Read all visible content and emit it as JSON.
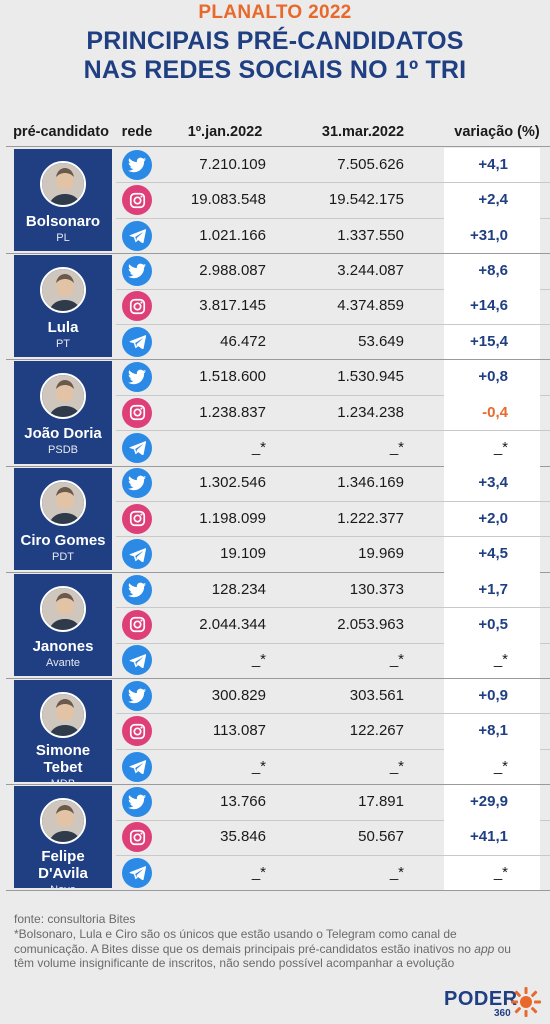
{
  "header": {
    "kicker": "PLANALTO 2022",
    "title_line1": "PRINCIPAIS PRÉ-CANDIDATOS",
    "title_line2": "NAS REDES SOCIAIS NO 1º TRI"
  },
  "columns": {
    "candidate": "pré-candidato",
    "network": "rede",
    "jan": "1º.jan.2022",
    "mar": "31.mar.2022",
    "change": "variação (%)"
  },
  "chart_data": {
    "type": "table",
    "networks": [
      "twitter",
      "instagram",
      "telegram"
    ],
    "candidates": [
      {
        "name": "Bolsonaro",
        "party": "PL",
        "rows": [
          {
            "network": "twitter",
            "jan": "7.210.109",
            "mar": "7.505.626",
            "change": "+4,1"
          },
          {
            "network": "instagram",
            "jan": "19.083.548",
            "mar": "19.542.175",
            "change": "+2,4"
          },
          {
            "network": "telegram",
            "jan": "1.021.166",
            "mar": "1.337.550",
            "change": "+31,0"
          }
        ]
      },
      {
        "name": "Lula",
        "party": "PT",
        "rows": [
          {
            "network": "twitter",
            "jan": "2.988.087",
            "mar": "3.244.087",
            "change": "+8,6"
          },
          {
            "network": "instagram",
            "jan": "3.817.145",
            "mar": "4.374.859",
            "change": "+14,6"
          },
          {
            "network": "telegram",
            "jan": "46.472",
            "mar": "53.649",
            "change": "+15,4"
          }
        ]
      },
      {
        "name": "João Doria",
        "party": "PSDB",
        "rows": [
          {
            "network": "twitter",
            "jan": "1.518.600",
            "mar": "1.530.945",
            "change": "+0,8"
          },
          {
            "network": "instagram",
            "jan": "1.238.837",
            "mar": "1.234.238",
            "change": "-0,4"
          },
          {
            "network": "telegram",
            "jan": "_*",
            "mar": "_*",
            "change": "_*"
          }
        ]
      },
      {
        "name": "Ciro Gomes",
        "party": "PDT",
        "rows": [
          {
            "network": "twitter",
            "jan": "1.302.546",
            "mar": "1.346.169",
            "change": "+3,4"
          },
          {
            "network": "instagram",
            "jan": "1.198.099",
            "mar": "1.222.377",
            "change": "+2,0"
          },
          {
            "network": "telegram",
            "jan": "19.109",
            "mar": "19.969",
            "change": "+4,5"
          }
        ]
      },
      {
        "name": "Janones",
        "party": "Avante",
        "rows": [
          {
            "network": "twitter",
            "jan": "128.234",
            "mar": "130.373",
            "change": "+1,7"
          },
          {
            "network": "instagram",
            "jan": "2.044.344",
            "mar": "2.053.963",
            "change": "+0,5"
          },
          {
            "network": "telegram",
            "jan": "_*",
            "mar": "_*",
            "change": "_*"
          }
        ]
      },
      {
        "name": "Simone Tebet",
        "party": "MDB",
        "rows": [
          {
            "network": "twitter",
            "jan": "300.829",
            "mar": "303.561",
            "change": "+0,9"
          },
          {
            "network": "instagram",
            "jan": "113.087",
            "mar": "122.267",
            "change": "+8,1"
          },
          {
            "network": "telegram",
            "jan": "_*",
            "mar": "_*",
            "change": "_*"
          }
        ]
      },
      {
        "name": "Felipe D'Avila",
        "party": "Novo",
        "rows": [
          {
            "network": "twitter",
            "jan": "13.766",
            "mar": "17.891",
            "change": "+29,9"
          },
          {
            "network": "instagram",
            "jan": "35.846",
            "mar": "50.567",
            "change": "+41,1"
          },
          {
            "network": "telegram",
            "jan": "_*",
            "mar": "_*",
            "change": "_*"
          }
        ]
      }
    ]
  },
  "footer": {
    "source": "fonte: consultoria Bites",
    "note_part1": "*Bolsonaro, Lula e Ciro são os únicos que estão usando o Telegram como canal de comunicação. A Bites disse que os demais principais pré-candidatos estão inativos no ",
    "note_app": "app",
    "note_part2": " ou têm volume insignificante de inscritos, não sendo possível acompanhar a evolução"
  },
  "logo": {
    "word": "PODER",
    "sub": "360"
  },
  "colors": {
    "navy": "#1f3f82",
    "orange": "#e8692b",
    "twitter": "#2b8ae6",
    "instagram": "#df3f79",
    "telegram": "#2b8ae6"
  }
}
